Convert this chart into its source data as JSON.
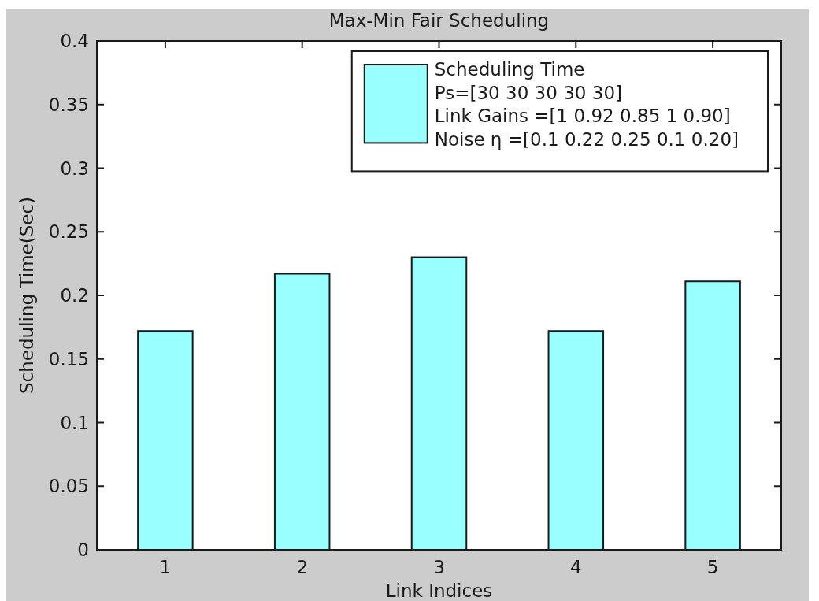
{
  "chart_data": {
    "type": "bar",
    "title": "Max-Min Fair Scheduling",
    "xlabel": "Link Indices",
    "ylabel": "Scheduling Time(Sec)",
    "categories": [
      "1",
      "2",
      "3",
      "4",
      "5"
    ],
    "series": [
      {
        "name": "Scheduling Time\nPs=[30 30 30 30 30]\nLink Gains =[1 0.92 0.85 1 0.90]\nNoise η =[0.1 0.22 0.25 0.1 0.20]",
        "color": "#99ffff",
        "values": [
          0.172,
          0.217,
          0.23,
          0.172,
          0.211
        ]
      }
    ],
    "ylim": [
      0,
      0.4
    ],
    "yticks": [
      0,
      0.05,
      0.1,
      0.15,
      0.2,
      0.25,
      0.3,
      0.35,
      0.4
    ],
    "legend": "top right"
  }
}
